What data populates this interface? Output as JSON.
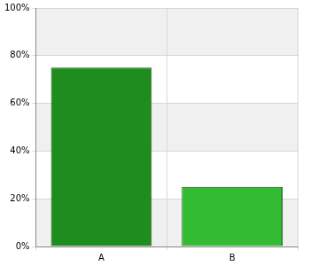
{
  "chart_data": {
    "type": "bar",
    "categories": [
      "A",
      "B"
    ],
    "values": [
      75,
      25
    ],
    "colors": [
      "#1e8c1e",
      "#33bb33"
    ],
    "ylim": [
      0,
      100
    ],
    "yticks": [
      {
        "value": 0,
        "label": "0%"
      },
      {
        "value": 20,
        "label": "20%"
      },
      {
        "value": 40,
        "label": "40%"
      },
      {
        "value": 60,
        "label": "60%"
      },
      {
        "value": 80,
        "label": "80%"
      },
      {
        "value": 100,
        "label": "100%"
      }
    ],
    "grid": true
  }
}
